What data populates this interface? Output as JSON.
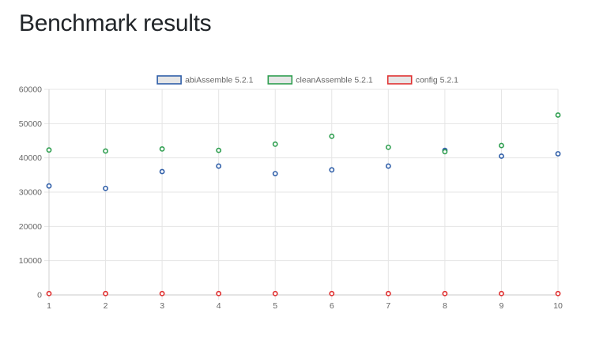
{
  "page": {
    "title": "Benchmark results"
  },
  "chart_data": {
    "type": "scatter",
    "x": [
      1,
      2,
      3,
      4,
      5,
      6,
      7,
      8,
      9,
      10
    ],
    "x_ticks": [
      "1",
      "2",
      "3",
      "4",
      "5",
      "6",
      "7",
      "8",
      "9",
      "10"
    ],
    "ylim": [
      0,
      60000
    ],
    "y_ticks": [
      "0",
      "10000",
      "20000",
      "30000",
      "40000",
      "50000",
      "60000"
    ],
    "grid": true,
    "legend_position": "top",
    "series": [
      {
        "name": "abiAssemble 5.2.1",
        "color": "#2f5ea8",
        "fill": "#e6e6e6",
        "values": [
          31800,
          31100,
          36000,
          37600,
          35400,
          36500,
          37600,
          42200,
          40500,
          41200
        ]
      },
      {
        "name": "cleanAssemble 5.2.1",
        "color": "#2e9e4f",
        "fill": "#e6e6e6",
        "values": [
          42300,
          42000,
          42600,
          42200,
          44000,
          46300,
          43100,
          41800,
          43600,
          52500
        ]
      },
      {
        "name": "config 5.2.1",
        "color": "#e03131",
        "fill": "#e6e6e6",
        "values": [
          400,
          400,
          400,
          400,
          400,
          400,
          400,
          400,
          400,
          400
        ]
      }
    ]
  }
}
